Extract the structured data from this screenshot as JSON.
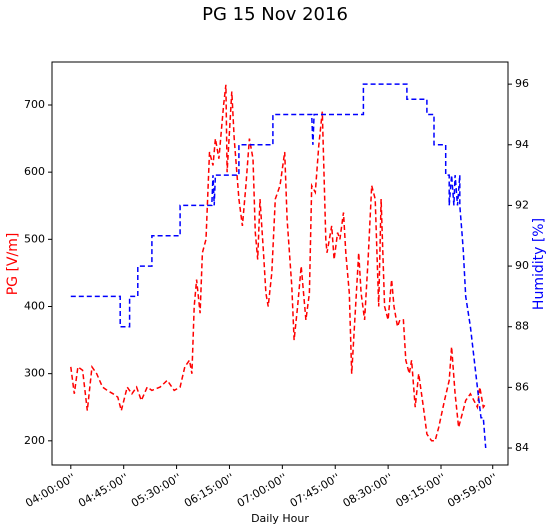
{
  "chart_data": {
    "type": "line",
    "title": "PG 15 Nov 2016",
    "xlabel": "Daily Hour",
    "ylabel": "PG [V/m]",
    "y2label": "Humidity [%]",
    "xlim": [
      224,
      612
    ],
    "ylim": [
      164,
      764
    ],
    "y2lim": [
      83.44,
      96.73
    ],
    "xticks": [
      {
        "value": 240,
        "label": "04:00:00''"
      },
      {
        "value": 285,
        "label": "04:45:00''"
      },
      {
        "value": 330,
        "label": "05:30:00''"
      },
      {
        "value": 375,
        "label": "06:15:00''"
      },
      {
        "value": 420,
        "label": "07:00:00''"
      },
      {
        "value": 465,
        "label": "07:45:00''"
      },
      {
        "value": 510,
        "label": "08:30:00''"
      },
      {
        "value": 555,
        "label": "09:15:00''"
      },
      {
        "value": 599,
        "label": "09:59:00''"
      }
    ],
    "yticks": [
      200,
      300,
      400,
      500,
      600,
      700
    ],
    "y2ticks": [
      84,
      86,
      88,
      90,
      92,
      94,
      96
    ],
    "series": [
      {
        "name": "PG",
        "color": "red",
        "axis": "y",
        "x": [
          240,
          243,
          246,
          250,
          254,
          258,
          262,
          267,
          271,
          276,
          280,
          283,
          288,
          292,
          296,
          300,
          305,
          309,
          316,
          322,
          328,
          333,
          337,
          341,
          343,
          345,
          347,
          350,
          352,
          355,
          358,
          361,
          363,
          366,
          370,
          372,
          373,
          377,
          379,
          383,
          386,
          389,
          392,
          395,
          397,
          399,
          401,
          404,
          406,
          408,
          411,
          414,
          418,
          422,
          424,
          428,
          430,
          433,
          436,
          440,
          443,
          445,
          448,
          451,
          454,
          457,
          458,
          462,
          464,
          467,
          469,
          472,
          474,
          477,
          479,
          482,
          485,
          487,
          490,
          493,
          496,
          499,
          502,
          504,
          507,
          510,
          513,
          515,
          518,
          520,
          523,
          525,
          528,
          530,
          533,
          536,
          540,
          543,
          547,
          550,
          553,
          558,
          562,
          564,
          567,
          570,
          573,
          576,
          580,
          583,
          586,
          588,
          591,
          593
        ],
        "values": [
          310,
          270,
          310,
          305,
          245,
          310,
          300,
          280,
          275,
          270,
          265,
          245,
          280,
          270,
          280,
          260,
          280,
          275,
          280,
          290,
          275,
          280,
          310,
          320,
          300,
          400,
          440,
          390,
          480,
          500,
          630,
          610,
          650,
          620,
          700,
          730,
          600,
          720,
          650,
          560,
          520,
          580,
          650,
          620,
          510,
          470,
          560,
          480,
          420,
          400,
          450,
          560,
          580,
          630,
          530,
          430,
          350,
          400,
          460,
          380,
          420,
          580,
          570,
          640,
          690,
          500,
          480,
          520,
          470,
          510,
          500,
          540,
          480,
          420,
          300,
          390,
          480,
          420,
          380,
          470,
          580,
          560,
          400,
          560,
          400,
          380,
          440,
          400,
          370,
          380,
          380,
          320,
          300,
          320,
          250,
          300,
          250,
          210,
          200,
          200,
          220,
          260,
          290,
          340,
          270,
          220,
          240,
          260,
          270,
          260,
          250,
          280,
          250,
          255
        ]
      },
      {
        "name": "Humidity",
        "color": "blue",
        "axis": "y2",
        "x": [
          240,
          282,
          282,
          290,
          290,
          297,
          297,
          309,
          309,
          333,
          333,
          360,
          361,
          362,
          363,
          383,
          383,
          412,
          412,
          445,
          446,
          447,
          489,
          489,
          526,
          526,
          543,
          543,
          549,
          549,
          559,
          559,
          562,
          562,
          564,
          566,
          567,
          569,
          571,
          571,
          573,
          574,
          576,
          580,
          583,
          586,
          589,
          591,
          593
        ],
        "values": [
          89,
          89,
          88,
          88,
          89,
          89,
          90,
          90,
          91,
          91,
          92,
          92,
          93,
          92,
          93,
          93,
          94,
          94,
          95,
          95,
          94,
          95,
          95,
          96,
          96,
          95.5,
          95.5,
          95,
          95,
          94,
          94,
          93,
          93,
          92,
          93,
          92,
          93,
          92,
          93,
          92,
          91,
          90.5,
          89,
          88,
          87,
          86,
          85,
          85,
          84
        ]
      }
    ]
  }
}
